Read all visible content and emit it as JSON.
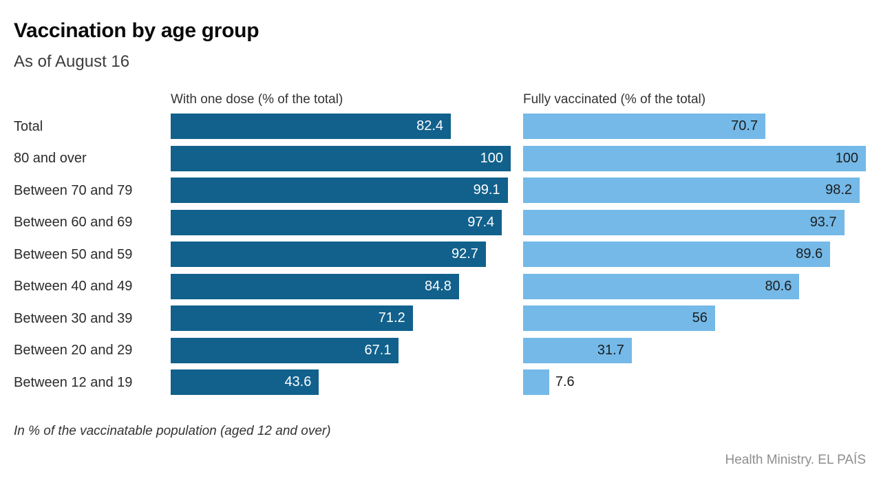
{
  "header": {
    "title": "Vaccination by age group",
    "subtitle": "As of August 16"
  },
  "chart_data": {
    "type": "bar",
    "orientation": "horizontal",
    "title": "Vaccination by age group",
    "subtitle": "As of August 16",
    "categories": [
      "Total",
      "80 and over",
      "Between 70 and 79",
      "Between 60 and 69",
      "Between 50 and 59",
      "Between 40 and 49",
      "Between 30 and 39",
      "Between 20 and 29",
      "Between 12 and 19"
    ],
    "series": [
      {
        "name": "With one dose (% of the total)",
        "color": "#11618C",
        "label_color_inside": "#ffffff",
        "values": [
          82.4,
          100,
          99.1,
          97.4,
          92.7,
          84.8,
          71.2,
          67.1,
          43.6
        ]
      },
      {
        "name": "Fully vaccinated (% of the total)",
        "color": "#74B9E8",
        "label_color_inside": "#1d1d1d",
        "values": [
          70.7,
          100,
          98.2,
          93.7,
          89.6,
          80.6,
          56,
          31.7,
          7.6
        ]
      }
    ],
    "xlim": [
      0,
      100
    ],
    "value_labels": true,
    "grid": false,
    "legend_position": "column-headers",
    "outside_label_color": "#1d1d1d",
    "outside_label_threshold": 12
  },
  "footer": {
    "note": "In % of the vaccinatable population (aged 12 and over)",
    "source": "Health Ministry. EL PAÍS"
  }
}
